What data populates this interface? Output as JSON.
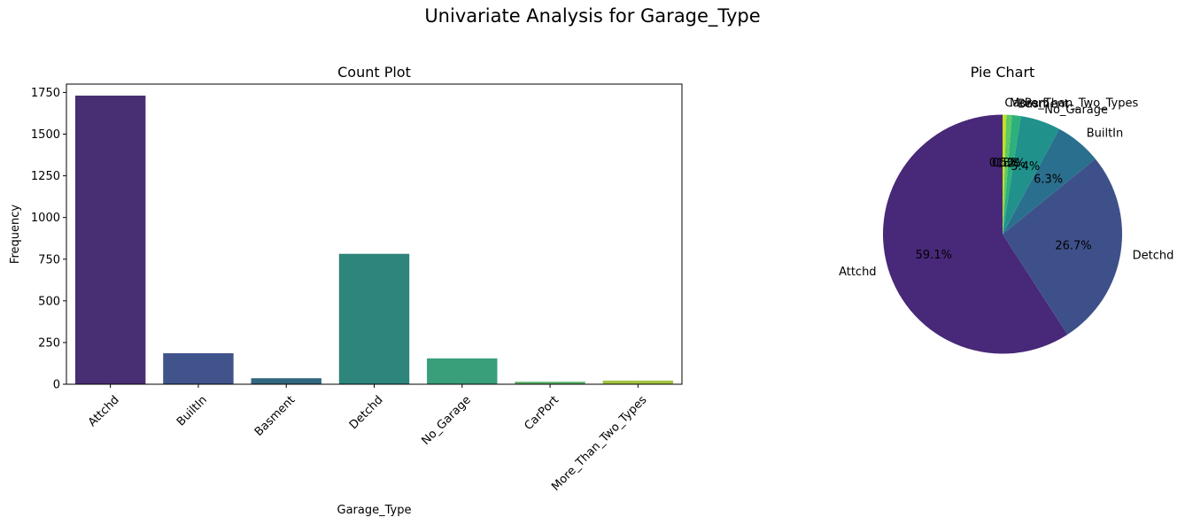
{
  "figure": {
    "suptitle": "Univariate Analysis for Garage_Type"
  },
  "chart_data": [
    {
      "type": "bar",
      "title": "Count Plot",
      "xlabel": "Garage_Type",
      "ylabel": "Frequency",
      "categories": [
        "Attchd",
        "BuiltIn",
        "Basment",
        "Detchd",
        "No_Garage",
        "CarPort",
        "More_Than_Two_Types"
      ],
      "values": [
        1731,
        186,
        36,
        782,
        155,
        15,
        22
      ],
      "colors": [
        "#482f73",
        "#40538b",
        "#31677e",
        "#2d857c",
        "#389f7a",
        "#5bb466",
        "#a2c541"
      ],
      "ylim": [
        0,
        1800
      ],
      "yticks": [
        0,
        250,
        500,
        750,
        1000,
        1250,
        1500,
        1750
      ],
      "grid": false,
      "legend": "none"
    },
    {
      "type": "pie",
      "title": "Pie Chart",
      "startangle": 90,
      "direction": "counterclockwise",
      "slices": [
        {
          "label": "Attchd",
          "pct_label": "59.1%",
          "value": 59.1,
          "color": "#482878"
        },
        {
          "label": "Detchd",
          "pct_label": "26.7%",
          "value": 26.7,
          "color": "#3e5089"
        },
        {
          "label": "BuiltIn",
          "pct_label": "6.3%",
          "value": 6.3,
          "color": "#2b6f8e"
        },
        {
          "label": "No_Garage",
          "pct_label": "5.4%",
          "value": 5.4,
          "color": "#21918c"
        },
        {
          "label": "Basment",
          "pct_label": "1.2%",
          "value": 1.2,
          "color": "#2db07c"
        },
        {
          "label": "More_Than_Two_Types",
          "pct_label": "0.8%",
          "value": 0.75,
          "color": "#5ec962"
        },
        {
          "label": "CarPort",
          "pct_label": "0.5%",
          "value": 0.5,
          "color": "#c2df23"
        }
      ]
    }
  ]
}
